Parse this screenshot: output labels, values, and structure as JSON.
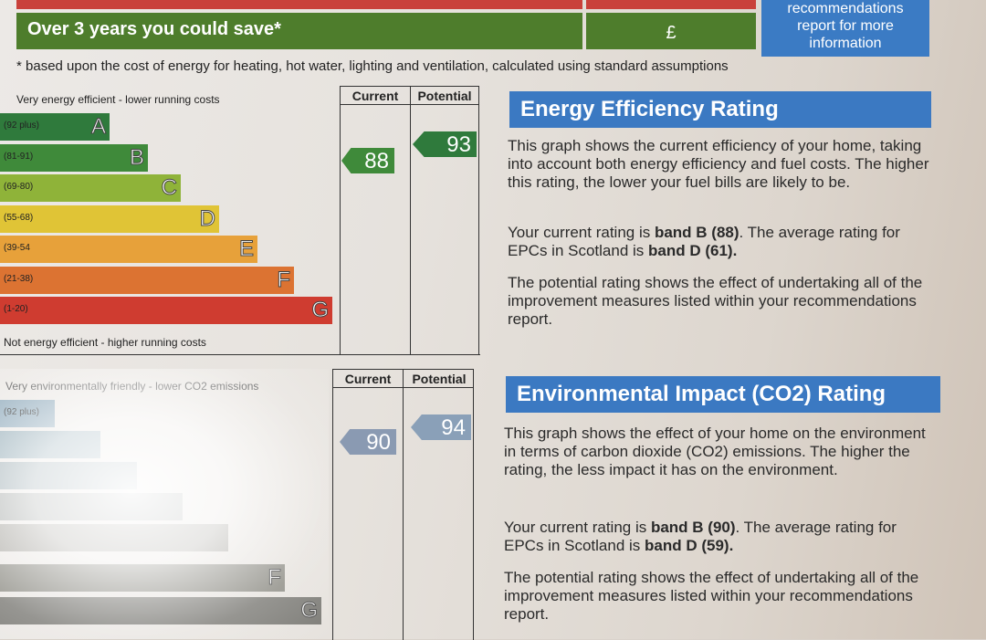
{
  "savings": {
    "label": "Over 3 years you could save*",
    "value": "£",
    "recommendations_lines": [
      "recommendations",
      "report for more",
      "information"
    ]
  },
  "footnote": "* based upon the cost of energy for heating, hot water, lighting and ventilation, calculated using standard assumptions",
  "energy_chart": {
    "top_label": "Very energy efficient - lower running costs",
    "bottom_label": "Not energy efficient - higher running costs",
    "col_current": "Current",
    "col_potential": "Potential",
    "bands": [
      {
        "range": "(92 plus)",
        "letter": "A",
        "color": "#2f7a3c"
      },
      {
        "range": "(81-91)",
        "letter": "B",
        "color": "#3f8a3a"
      },
      {
        "range": "(69-80)",
        "letter": "C",
        "color": "#8fb339"
      },
      {
        "range": "(55-68)",
        "letter": "D",
        "color": "#e0c436"
      },
      {
        "range": "(39-54",
        "letter": "E",
        "color": "#e7a13a"
      },
      {
        "range": "(21-38)",
        "letter": "F",
        "color": "#dc7332"
      },
      {
        "range": "(1-20)",
        "letter": "G",
        "color": "#cf3c30"
      }
    ],
    "current": "88",
    "potential": "93"
  },
  "env_chart": {
    "top_label": "Very environmentally friendly - lower CO2 emissions",
    "first_range": "(92 plus)",
    "col_current": "Current",
    "col_potential": "Potential",
    "letters": [
      "F",
      "G"
    ],
    "current": "90",
    "potential": "94"
  },
  "energy_text": {
    "heading": "Energy Efficiency Rating",
    "p1": "This graph shows the current efficiency of your home, taking into account both energy efficiency and fuel costs. The higher this rating, the lower your fuel bills are likely to be.",
    "p2_pre": "Your current rating is ",
    "p2_bold1": "band B (88)",
    "p2_mid": ". The average rating for EPCs in Scotland is ",
    "p2_bold2": "band D (61).",
    "p3": "The potential rating shows the effect of undertaking all of the improvement measures listed within your recommendations report."
  },
  "env_text": {
    "heading": "Environmental Impact (CO2) Rating",
    "p1": "This graph shows the effect of your home on the environment in terms of carbon dioxide (CO2) emissions. The higher the rating, the less impact it has on the environment.",
    "p2_pre": "Your current rating is ",
    "p2_bold1": "band B (90)",
    "p2_mid": ". The average rating for EPCs in Scotland is ",
    "p2_bold2": "band D (59).",
    "p3": "The potential rating shows the effect of undertaking all of the improvement measures listed within your recommendations report."
  }
}
